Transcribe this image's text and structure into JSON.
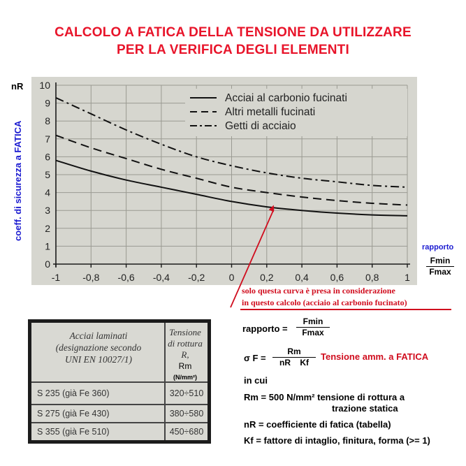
{
  "title": {
    "line1": "CALCOLO A FATICA DELLA TENSIONE DA UTILIZZARE",
    "line2": "PER LA VERIFICA DEGLI ELEMENTI"
  },
  "chart_data": {
    "type": "line",
    "x_label": "rapporto",
    "x_label_fraction": {
      "num": "Fmin",
      "den": "Fmax"
    },
    "y_label": "coeff. di sicurezza a FATICA",
    "y_short_label": "nR",
    "xlim": [
      -1,
      1
    ],
    "ylim": [
      0,
      10
    ],
    "x_ticks": [
      "-1",
      "-0,8",
      "-0,6",
      "-0,4",
      "-0,2",
      "0",
      "0,2",
      "0,4",
      "0,6",
      "0,8",
      "1"
    ],
    "y_ticks": [
      "0",
      "1",
      "2",
      "3",
      "4",
      "5",
      "6",
      "7",
      "8",
      "9",
      "10"
    ],
    "grid": true,
    "legend_position": "top-right",
    "x": [
      -1,
      -0.8,
      -0.6,
      -0.4,
      -0.2,
      0,
      0.2,
      0.4,
      0.6,
      0.8,
      1
    ],
    "series": [
      {
        "name": "Acciai al carbonio fucinati",
        "style": "solid",
        "values": [
          5.8,
          5.2,
          4.7,
          4.3,
          3.9,
          3.5,
          3.2,
          3.0,
          2.85,
          2.75,
          2.7
        ]
      },
      {
        "name": "Altri metalli fucinati",
        "style": "dashed",
        "values": [
          7.2,
          6.5,
          5.9,
          5.3,
          4.8,
          4.3,
          4.0,
          3.75,
          3.55,
          3.4,
          3.3
        ]
      },
      {
        "name": "Getti di acciaio",
        "style": "dashdot",
        "values": [
          9.3,
          8.4,
          7.5,
          6.7,
          6.0,
          5.5,
          5.1,
          4.8,
          4.6,
          4.4,
          4.3
        ]
      }
    ],
    "annotation": {
      "line1": "solo questa curva è presa in considerazione",
      "line2": "in questo calcolo (acciaio al carbonio fucinato)",
      "arrow_to": {
        "x": 0.24,
        "y": 3.3
      }
    },
    "colors": {
      "plot_bg": "#d6d6cf",
      "grid": "#9a9a92",
      "axis": "#1a1a1a",
      "label_blue": "#1a1ad0",
      "annotation_red": "#d00d1e"
    }
  },
  "table": {
    "header_col1": [
      "Acciai laminati",
      "(designazione secondo",
      "UNI EN 10027/1)"
    ],
    "header_col2": [
      "Tensione",
      "di rottura R,"
    ],
    "header_col2_symbol": "Rm",
    "header_col2_unit": "(N/mm²)",
    "rows": [
      {
        "grade": "S 235   (già Fe 360)",
        "range": "320÷510"
      },
      {
        "grade": "S 275   (già Fe 430)",
        "range": "380÷580"
      },
      {
        "grade": "S 355   (già Fe 510)",
        "range": "450÷680"
      }
    ]
  },
  "formulas": {
    "rapporto_label": "rapporto =",
    "rapporto_num": "Fmin",
    "rapporto_den": "Fmax",
    "sigma_label": "σ F =",
    "sigma_num": "Rm",
    "sigma_den": "nR    Kf",
    "sigma_desc": "Tensione amm. a FATICA",
    "in_cui": "in cui",
    "rm_line1": "Rm = 500  N/mm²  tensione di rottura a",
    "rm_line2": "trazione statica",
    "nr_line": "nR = coefficiente di fatica  (tabella)",
    "kf_line": "Kf = fattore di intaglio, finitura, forma (>= 1)"
  }
}
